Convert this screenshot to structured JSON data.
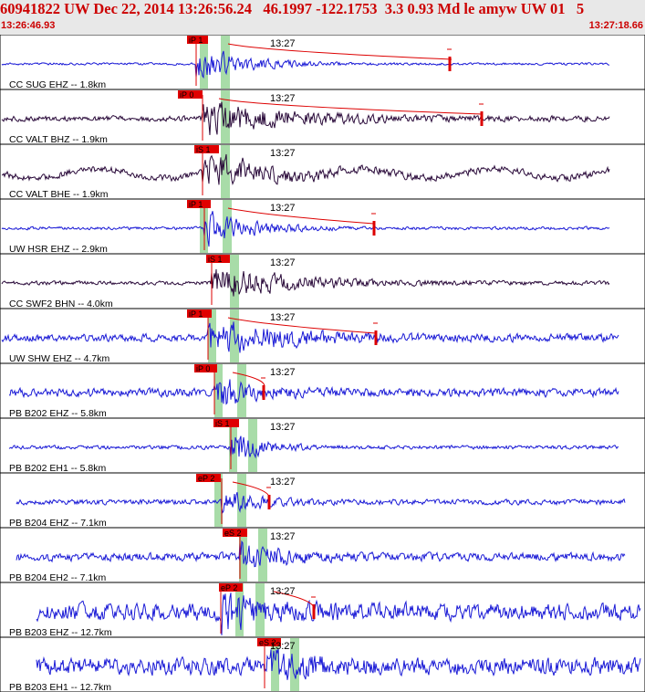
{
  "header": {
    "title": "60941822 UW Dec 22, 2014 13:26:56.24   46.1997 -122.1753  3.3 0.93 Md le amyw UW 01   5",
    "start_time": "13:26:46.93",
    "end_time": "13:27:18.66"
  },
  "colors": {
    "header_bg": "#e8e8e8",
    "header_text": "#cc0000",
    "blue_trace": "#1a1ad6",
    "dark_trace": "#2a0a3a",
    "pick": "#dd0000",
    "window": "#a8dca8"
  },
  "chart_data": {
    "type": "seismogram",
    "time_range": [
      "13:26:46.93",
      "13:27:18.66"
    ],
    "minute_label": "13:27",
    "traces": [
      {
        "label": "CC SUG EHZ -- 1.8km",
        "color": "blue",
        "pick": "iP 1",
        "coda": true,
        "amp_mark": true,
        "noise": 0.06,
        "signal": 1.0,
        "decay": 4.0
      },
      {
        "label": "CC VALT BHZ -- 1.9km",
        "color": "dark",
        "pick": "iP 0",
        "coda": true,
        "amp_mark": true,
        "noise": 0.14,
        "signal": 0.9,
        "decay": 7.0
      },
      {
        "label": "CC VALT BHE -- 1.9km",
        "color": "dark",
        "pick": "iS 1",
        "coda": false,
        "amp_mark": false,
        "noise": 0.18,
        "signal": 0.9,
        "decay": 5.0
      },
      {
        "label": "UW HSR EHZ -- 2.9km",
        "color": "blue",
        "pick": "iP 1",
        "coda": true,
        "amp_mark": true,
        "noise": 0.08,
        "signal": 0.9,
        "decay": 4.0
      },
      {
        "label": "CC SWF2 BHN -- 4.0km",
        "color": "dark",
        "pick": "iS 1",
        "coda": false,
        "amp_mark": false,
        "noise": 0.1,
        "signal": 0.9,
        "decay": 7.0
      },
      {
        "label": "UW SHW EHZ -- 4.7km",
        "color": "blue",
        "pick": "iP 1",
        "coda": true,
        "amp_mark": true,
        "noise": 0.2,
        "signal": 1.0,
        "decay": 6.0
      },
      {
        "label": "PB B202 EHZ -- 5.8km",
        "color": "blue",
        "pick": "iP 0",
        "coda": true,
        "amp_mark": true,
        "noise": 0.22,
        "signal": 0.9,
        "decay": 3.0
      },
      {
        "label": "PB B202 EH1 -- 5.8km",
        "color": "blue",
        "pick": "iS 1",
        "coda": false,
        "amp_mark": false,
        "noise": 0.1,
        "signal": 0.9,
        "decay": 2.5
      },
      {
        "label": "PB B204 EHZ -- 7.1km",
        "color": "blue",
        "pick": "eP 2",
        "coda": true,
        "amp_mark": true,
        "noise": 0.14,
        "signal": 0.6,
        "decay": 3.0
      },
      {
        "label": "PB B204 EH2 -- 7.1km",
        "color": "blue",
        "pick": "eS 2",
        "coda": false,
        "amp_mark": false,
        "noise": 0.22,
        "signal": 0.8,
        "decay": 3.0
      },
      {
        "label": "PB B203 EHZ -- 12.7km",
        "color": "blue",
        "pick": "eP 2",
        "coda": true,
        "amp_mark": true,
        "noise": 0.45,
        "signal": 0.9,
        "decay": 3.0
      },
      {
        "label": "PB B203 EH1 -- 12.7km",
        "color": "blue",
        "pick": "eS 2",
        "coda": false,
        "amp_mark": false,
        "noise": 0.45,
        "signal": 0.9,
        "decay": 3.0
      }
    ]
  }
}
